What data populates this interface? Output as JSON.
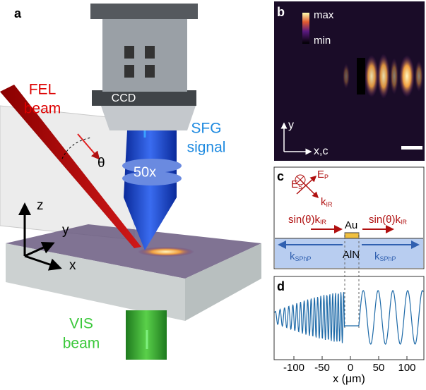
{
  "panel_a": {
    "letter": "a",
    "fel_beam": [
      "FEL",
      "beam"
    ],
    "ccd": "CCD",
    "sfg_signal": [
      "SFG",
      "signal"
    ],
    "objective": "50x",
    "theta": "θ",
    "axes": {
      "z": "z",
      "y": "y",
      "x": "x"
    },
    "vis_beam": [
      "VIS",
      "beam"
    ]
  },
  "panel_b": {
    "letter": "b",
    "colorbar_max": "max",
    "colorbar_min": "min",
    "axis_y": "y",
    "axis_x": "x,c"
  },
  "panel_c": {
    "letter": "c",
    "e_s": {
      "main": "E",
      "sub": "S"
    },
    "e_p": {
      "main": "E",
      "sub": "P"
    },
    "k_ir": {
      "main": "k",
      "sub": "IR"
    },
    "left_wave": {
      "main": "sin(θ)k",
      "sub": "IR"
    },
    "right_wave": {
      "main": "sin(θ)k",
      "sub": "IR"
    },
    "au": "Au",
    "aln": "AlN",
    "left_sphp": {
      "main": "k",
      "sub": "SPhP"
    },
    "right_sphp": {
      "main": "k",
      "sub": "SPhP"
    }
  },
  "panel_d": {
    "letter": "d",
    "xlabel": "x (μm)",
    "xlim": [
      -135,
      130
    ],
    "xticks": [
      -100,
      -50,
      0,
      50,
      100
    ]
  }
}
